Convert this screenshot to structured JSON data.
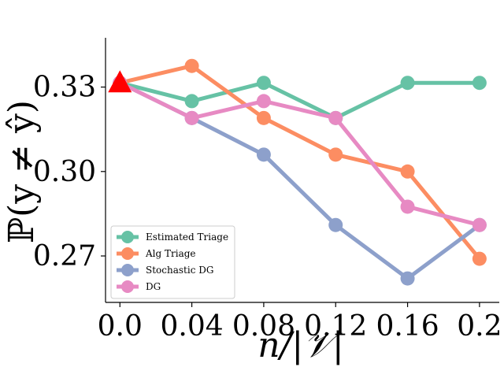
{
  "chart_data": {
    "type": "line",
    "xlabel": "n/|𝒱|",
    "ylabel": "ℙ(y ≠ ŷ)",
    "x": [
      0.0,
      0.04,
      0.08,
      0.12,
      0.16,
      0.2
    ],
    "x_tick_labels": [
      "0.0",
      "0.04",
      "0.08",
      "0.12",
      "0.16",
      "0.2"
    ],
    "y_ticks": [
      0.27,
      0.3,
      0.33
    ],
    "y_tick_labels": [
      "0.27",
      "0.30",
      "0.33"
    ],
    "xlim": [
      -0.008,
      0.211
    ],
    "ylim": [
      0.2535,
      0.3475
    ],
    "legend_position": "lower-left",
    "grid": false,
    "series": [
      {
        "name": "Estimated Triage",
        "color": "#66c2a5",
        "values": [
          0.3315,
          0.325,
          0.3315,
          0.319,
          0.3315,
          0.3315
        ]
      },
      {
        "name": "Alg Triage",
        "color": "#fc8d62",
        "values": [
          0.3315,
          0.3375,
          0.319,
          0.306,
          0.3,
          0.269
        ]
      },
      {
        "name": "Stochastic DG",
        "color": "#8da0cb",
        "values": [
          0.3315,
          0.319,
          0.306,
          0.281,
          0.262,
          0.281
        ]
      },
      {
        "name": "DG",
        "color": "#e78ac3",
        "values": [
          0.3315,
          0.319,
          0.325,
          0.319,
          0.2875,
          0.281
        ]
      }
    ],
    "marker": {
      "x": 0.0,
      "y": 0.3315,
      "shape": "triangle",
      "color": "#ff0000"
    }
  }
}
